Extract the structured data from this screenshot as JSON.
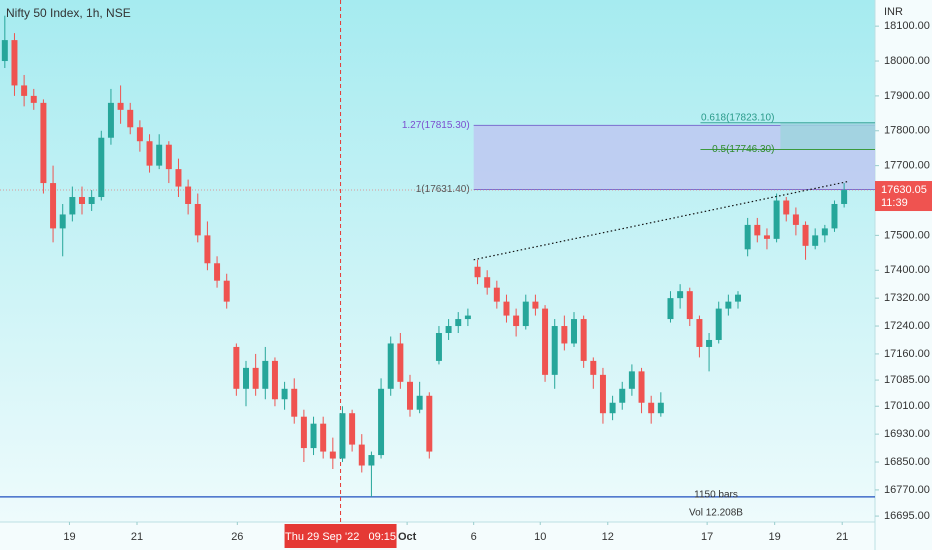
{
  "chart_data": {
    "type": "candlestick",
    "title": "Nifty 50 Index, 1h, NSE",
    "currency": "INR",
    "up_color": "#26a69a",
    "down_color": "#ef5350",
    "xlim": [
      -0.5,
      90.2
    ],
    "ylim": [
      16678,
      18175
    ],
    "yticks": [
      {
        "value": 18100,
        "label": "18100.00"
      },
      {
        "value": 18000,
        "label": "18000.00"
      },
      {
        "value": 17900,
        "label": "17900.00"
      },
      {
        "value": 17800,
        "label": "17800.00"
      },
      {
        "value": 17700,
        "label": "17700.00"
      },
      {
        "value": 17500,
        "label": "17500.00"
      },
      {
        "value": 17400,
        "label": "17400.00"
      },
      {
        "value": 17320,
        "label": "17320.00"
      },
      {
        "value": 17240,
        "label": "17240.00"
      },
      {
        "value": 17160,
        "label": "17160.00"
      },
      {
        "value": 17085,
        "label": "17085.00"
      },
      {
        "value": 17010,
        "label": "17010.00"
      },
      {
        "value": 16930,
        "label": "16930.00"
      },
      {
        "value": 16850,
        "label": "16850.00"
      },
      {
        "value": 16770,
        "label": "16770.00"
      },
      {
        "value": 16695,
        "label": "16695.00"
      }
    ],
    "xticks": [
      {
        "value": 6.7,
        "label": "19"
      },
      {
        "value": 13.7,
        "label": "21"
      },
      {
        "value": 24.1,
        "label": "26"
      },
      {
        "value": 41.7,
        "label": "Oct"
      },
      {
        "value": 48.6,
        "label": "6"
      },
      {
        "value": 55.5,
        "label": "10"
      },
      {
        "value": 62.5,
        "label": "12"
      },
      {
        "value": 72.8,
        "label": "17"
      },
      {
        "value": 79.8,
        "label": "19"
      },
      {
        "value": 86.8,
        "label": "21"
      }
    ],
    "crosshair": {
      "x": 34.8,
      "label": "Thu 29 Sep '22   09:15"
    },
    "ohlc": [
      [
        18000,
        18130,
        17980,
        18060
      ],
      [
        18060,
        18080,
        17900,
        17930
      ],
      [
        17930,
        17960,
        17870,
        17900
      ],
      [
        17900,
        17920,
        17860,
        17880
      ],
      [
        17880,
        17890,
        17620,
        17650
      ],
      [
        17650,
        17700,
        17480,
        17520
      ],
      [
        17520,
        17590,
        17440,
        17560
      ],
      [
        17560,
        17640,
        17540,
        17610
      ],
      [
        17610,
        17640,
        17560,
        17590
      ],
      [
        17590,
        17630,
        17570,
        17610
      ],
      [
        17610,
        17800,
        17600,
        17780
      ],
      [
        17780,
        17920,
        17760,
        17880
      ],
      [
        17880,
        17930,
        17820,
        17860
      ],
      [
        17860,
        17880,
        17790,
        17810
      ],
      [
        17810,
        17830,
        17740,
        17770
      ],
      [
        17770,
        17790,
        17680,
        17700
      ],
      [
        17700,
        17790,
        17690,
        17760
      ],
      [
        17760,
        17770,
        17650,
        17690
      ],
      [
        17690,
        17720,
        17610,
        17640
      ],
      [
        17640,
        17660,
        17560,
        17590
      ],
      [
        17590,
        17620,
        17480,
        17500
      ],
      [
        17500,
        17540,
        17400,
        17420
      ],
      [
        17420,
        17440,
        17350,
        17370
      ],
      [
        17370,
        17390,
        17290,
        17310
      ],
      [
        17180,
        17190,
        17040,
        17060
      ],
      [
        17060,
        17140,
        17010,
        17120
      ],
      [
        17120,
        17160,
        17040,
        17060
      ],
      [
        17060,
        17180,
        17030,
        17140
      ],
      [
        17140,
        17150,
        17010,
        17030
      ],
      [
        17030,
        17080,
        17000,
        17060
      ],
      [
        17060,
        17090,
        16960,
        16980
      ],
      [
        16980,
        17000,
        16850,
        16890
      ],
      [
        16890,
        16980,
        16870,
        16960
      ],
      [
        16960,
        16980,
        16860,
        16880
      ],
      [
        16880,
        16920,
        16830,
        16860
      ],
      [
        16860,
        17010,
        16850,
        16990
      ],
      [
        16990,
        17000,
        16880,
        16900
      ],
      [
        16900,
        16930,
        16820,
        16840
      ],
      [
        16840,
        16880,
        16750,
        16870
      ],
      [
        16870,
        17090,
        16860,
        17060
      ],
      [
        17060,
        17210,
        17040,
        17190
      ],
      [
        17190,
        17220,
        17060,
        17080
      ],
      [
        17080,
        17100,
        16980,
        17000
      ],
      [
        17000,
        17080,
        16990,
        17040
      ],
      [
        17040,
        17050,
        16860,
        16880
      ],
      [
        17140,
        17240,
        17130,
        17220
      ],
      [
        17220,
        17260,
        17200,
        17240
      ],
      [
        17240,
        17280,
        17220,
        17260
      ],
      [
        17260,
        17290,
        17240,
        17270
      ],
      [
        17410,
        17430,
        17360,
        17380
      ],
      [
        17380,
        17400,
        17330,
        17350
      ],
      [
        17350,
        17370,
        17290,
        17310
      ],
      [
        17310,
        17330,
        17250,
        17270
      ],
      [
        17270,
        17290,
        17210,
        17240
      ],
      [
        17240,
        17330,
        17230,
        17310
      ],
      [
        17310,
        17330,
        17270,
        17290
      ],
      [
        17290,
        17300,
        17080,
        17100
      ],
      [
        17100,
        17260,
        17060,
        17240
      ],
      [
        17240,
        17270,
        17170,
        17190
      ],
      [
        17190,
        17280,
        17180,
        17260
      ],
      [
        17260,
        17270,
        17120,
        17140
      ],
      [
        17140,
        17150,
        17060,
        17100
      ],
      [
        17100,
        17120,
        16960,
        16990
      ],
      [
        16990,
        17040,
        16970,
        17020
      ],
      [
        17020,
        17080,
        17000,
        17060
      ],
      [
        17060,
        17130,
        17040,
        17110
      ],
      [
        17110,
        17120,
        16990,
        17020
      ],
      [
        17020,
        17040,
        16960,
        16990
      ],
      [
        16990,
        17050,
        16980,
        17020
      ],
      [
        17260,
        17340,
        17250,
        17320
      ],
      [
        17320,
        17360,
        17290,
        17340
      ],
      [
        17340,
        17350,
        17240,
        17260
      ],
      [
        17260,
        17270,
        17150,
        17180
      ],
      [
        17180,
        17220,
        17110,
        17200
      ],
      [
        17200,
        17310,
        17190,
        17290
      ],
      [
        17290,
        17330,
        17270,
        17310
      ],
      [
        17310,
        17340,
        17290,
        17330
      ],
      [
        17460,
        17550,
        17440,
        17530
      ],
      [
        17530,
        17550,
        17480,
        17500
      ],
      [
        17500,
        17520,
        17460,
        17490
      ],
      [
        17490,
        17620,
        17480,
        17600
      ],
      [
        17600,
        17610,
        17540,
        17560
      ],
      [
        17560,
        17580,
        17500,
        17530
      ],
      [
        17530,
        17540,
        17430,
        17470
      ],
      [
        17470,
        17520,
        17460,
        17500
      ],
      [
        17500,
        17530,
        17480,
        17520
      ],
      [
        17520,
        17600,
        17510,
        17590
      ],
      [
        17590,
        17650,
        17580,
        17630
      ]
    ],
    "fib_zone": {
      "x_start": 48.6,
      "upper": {
        "value": 17815.3,
        "label": "1.27(17815.30)"
      },
      "lower": {
        "value": 17631.4,
        "label": "1(17631.40)"
      }
    },
    "fib_zone2": {
      "x_start": 80.4,
      "upper": {
        "value": 17823.1,
        "label": "0.618(17823.10)"
      },
      "lower": {
        "value": 17746.3,
        "label": "0.5(17746.30)"
      }
    },
    "trendline": {
      "x": [
        48.6,
        87.5
      ],
      "y": [
        17430,
        17655
      ]
    },
    "support_line": 16750,
    "bars_label": "1150 bars",
    "volume_label": "Vol 12.208B",
    "last_price": {
      "value": 17630.05,
      "label": "17630.05"
    },
    "countdown": "11:39"
  }
}
